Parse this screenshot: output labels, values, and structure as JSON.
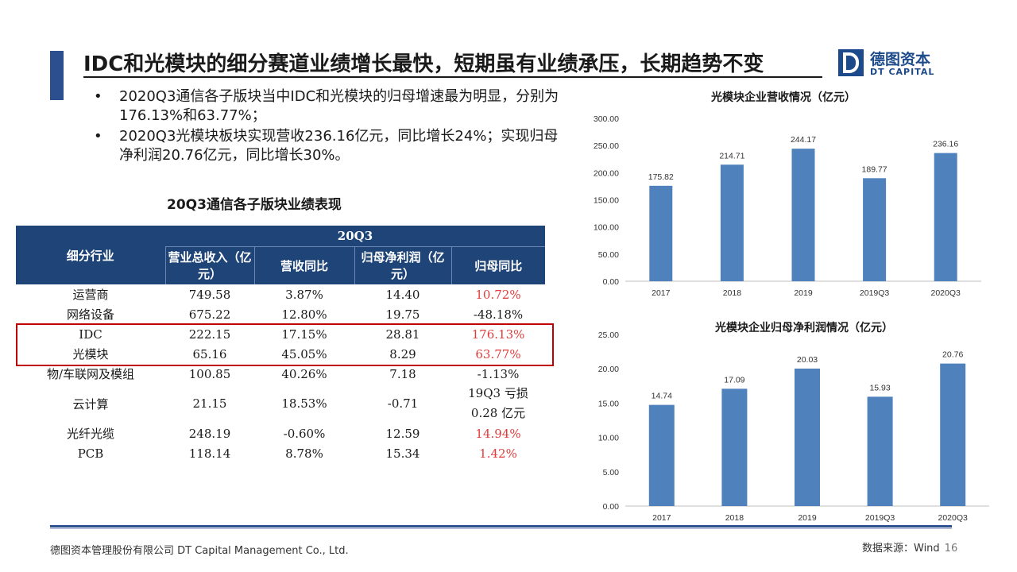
{
  "title": "IDC和光模块的细分赛道业绩增长最快，短期虽有业绩承压，长期趋势不变",
  "logo": {
    "cn": "德图资本",
    "en": "DT CAPITAL"
  },
  "bullets": [
    "2020Q3通信各子版块当中IDC和光模块的归母增速最为明显，分别为176.13%和63.77%；",
    "2020Q3光模块板块实现营收236.16亿元，同比增长24%；实现归母净利润20.76亿元，同比增长30%。"
  ],
  "table": {
    "title": "20Q3通信各子版块业绩表现",
    "period": "20Q3",
    "headers": [
      "细分行业",
      "营业总收入（亿元）",
      "营收同比",
      "归母净利润（亿元）",
      "归母同比"
    ],
    "rows": [
      {
        "name": "运营商",
        "revenue": "749.58",
        "rev_yoy": "3.87%",
        "profit": "14.40",
        "profit_yoy": "10.72%",
        "red": true
      },
      {
        "name": "网络设备",
        "revenue": "675.22",
        "rev_yoy": "12.80%",
        "profit": "19.75",
        "profit_yoy": "-48.18%",
        "red": false
      },
      {
        "name": "IDC",
        "revenue": "222.15",
        "rev_yoy": "17.15%",
        "profit": "28.81",
        "profit_yoy": "176.13%",
        "red": true
      },
      {
        "name": "光模块",
        "revenue": "65.16",
        "rev_yoy": "45.05%",
        "profit": "8.29",
        "profit_yoy": "63.77%",
        "red": true
      },
      {
        "name": "物/车联网及模组",
        "revenue": "100.85",
        "rev_yoy": "40.26%",
        "profit": "7.18",
        "profit_yoy": "-1.13%",
        "red": false
      },
      {
        "name": "云计算",
        "revenue": "21.15",
        "rev_yoy": "18.53%",
        "profit": "-0.71",
        "profit_yoy": "19Q3 亏损 0.28 亿元",
        "red": false
      },
      {
        "name": "光纤光缆",
        "revenue": "248.19",
        "rev_yoy": "-0.60%",
        "profit": "12.59",
        "profit_yoy": "14.94%",
        "red": true
      },
      {
        "name": "PCB",
        "revenue": "118.14",
        "rev_yoy": "8.78%",
        "profit": "15.34",
        "profit_yoy": "1.42%",
        "red": true
      }
    ]
  },
  "chart_data": [
    {
      "type": "bar",
      "title": "光模块企业营收情况（亿元）",
      "categories": [
        "2017",
        "2018",
        "2019",
        "2019Q3",
        "2020Q3"
      ],
      "values": [
        175.82,
        214.71,
        244.17,
        189.77,
        236.16
      ],
      "ylim": [
        0,
        300
      ],
      "yticks": [
        "0.00",
        "50.00",
        "100.00",
        "150.00",
        "200.00",
        "250.00",
        "300.00"
      ],
      "color": "#4f81bd"
    },
    {
      "type": "bar",
      "title": "光模块企业归母净利润情况（亿元）",
      "categories": [
        "2017",
        "2018",
        "2019",
        "2019Q3",
        "2020Q3"
      ],
      "values": [
        14.74,
        17.09,
        20.03,
        15.93,
        20.76
      ],
      "ylim": [
        0,
        25
      ],
      "yticks": [
        "0.00",
        "5.00",
        "10.00",
        "15.00",
        "20.00",
        "25.00"
      ],
      "color": "#4f81bd"
    }
  ],
  "footer": {
    "company": "德图资本管理股份有限公司  DT Capital Management Co., Ltd.",
    "source": "数据来源：Wind",
    "page": "16"
  },
  "colors": {
    "accent": "#2c4f8f",
    "header": "#1f4478",
    "red": "#e03c3c",
    "highlight_border": "#c00000"
  }
}
